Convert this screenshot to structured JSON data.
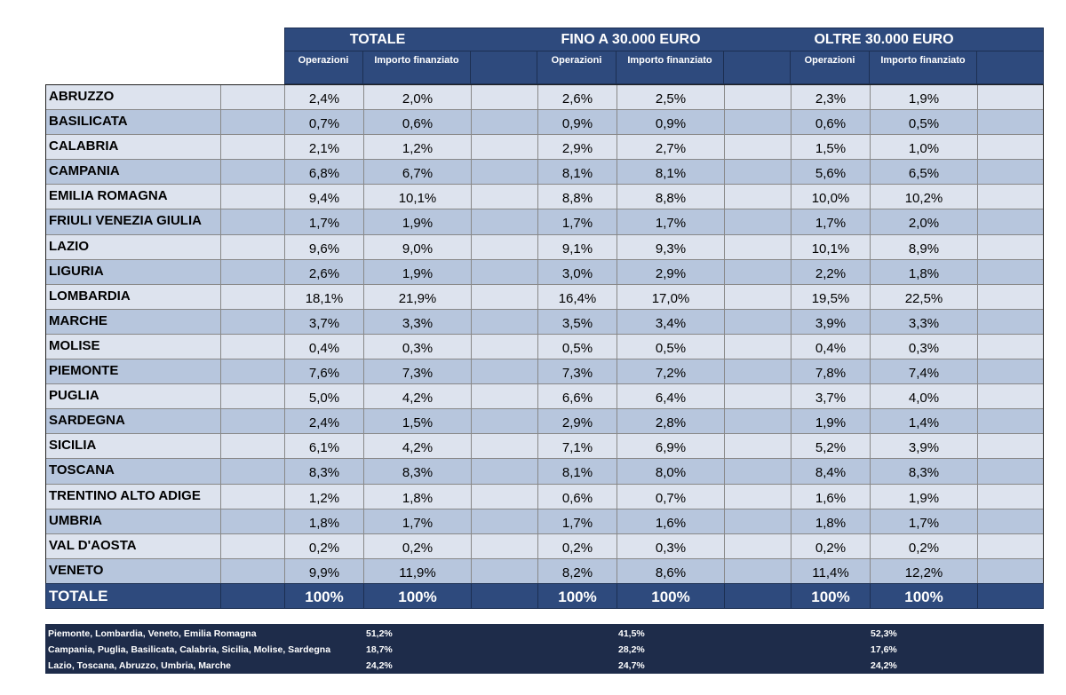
{
  "header": {
    "groups": [
      "TOTALE",
      "FINO A 30.000 EURO",
      "OLTRE 30.000 EURO"
    ],
    "sub_ops": "Operazioni",
    "sub_imp": "Importo finanziato"
  },
  "rows": [
    {
      "name": "ABRUZZO",
      "v": [
        "2,4%",
        "2,0%",
        "2,6%",
        "2,5%",
        "2,3%",
        "1,9%"
      ]
    },
    {
      "name": "BASILICATA",
      "v": [
        "0,7%",
        "0,6%",
        "0,9%",
        "0,9%",
        "0,6%",
        "0,5%"
      ]
    },
    {
      "name": "CALABRIA",
      "v": [
        "2,1%",
        "1,2%",
        "2,9%",
        "2,7%",
        "1,5%",
        "1,0%"
      ]
    },
    {
      "name": "CAMPANIA",
      "v": [
        "6,8%",
        "6,7%",
        "8,1%",
        "8,1%",
        "5,6%",
        "6,5%"
      ]
    },
    {
      "name": "EMILIA ROMAGNA",
      "v": [
        "9,4%",
        "10,1%",
        "8,8%",
        "8,8%",
        "10,0%",
        "10,2%"
      ]
    },
    {
      "name": "FRIULI VENEZIA GIULIA",
      "v": [
        "1,7%",
        "1,9%",
        "1,7%",
        "1,7%",
        "1,7%",
        "2,0%"
      ]
    },
    {
      "name": "LAZIO",
      "v": [
        "9,6%",
        "9,0%",
        "9,1%",
        "9,3%",
        "10,1%",
        "8,9%"
      ]
    },
    {
      "name": "LIGURIA",
      "v": [
        "2,6%",
        "1,9%",
        "3,0%",
        "2,9%",
        "2,2%",
        "1,8%"
      ]
    },
    {
      "name": "LOMBARDIA",
      "v": [
        "18,1%",
        "21,9%",
        "16,4%",
        "17,0%",
        "19,5%",
        "22,5%"
      ]
    },
    {
      "name": "MARCHE",
      "v": [
        "3,7%",
        "3,3%",
        "3,5%",
        "3,4%",
        "3,9%",
        "3,3%"
      ]
    },
    {
      "name": "MOLISE",
      "v": [
        "0,4%",
        "0,3%",
        "0,5%",
        "0,5%",
        "0,4%",
        "0,3%"
      ]
    },
    {
      "name": "PIEMONTE",
      "v": [
        "7,6%",
        "7,3%",
        "7,3%",
        "7,2%",
        "7,8%",
        "7,4%"
      ]
    },
    {
      "name": "PUGLIA",
      "v": [
        "5,0%",
        "4,2%",
        "6,6%",
        "6,4%",
        "3,7%",
        "4,0%"
      ]
    },
    {
      "name": "SARDEGNA",
      "v": [
        "2,4%",
        "1,5%",
        "2,9%",
        "2,8%",
        "1,9%",
        "1,4%"
      ]
    },
    {
      "name": "SICILIA",
      "v": [
        "6,1%",
        "4,2%",
        "7,1%",
        "6,9%",
        "5,2%",
        "3,9%"
      ]
    },
    {
      "name": "TOSCANA",
      "v": [
        "8,3%",
        "8,3%",
        "8,1%",
        "8,0%",
        "8,4%",
        "8,3%"
      ]
    },
    {
      "name": "TRENTINO ALTO ADIGE",
      "v": [
        "1,2%",
        "1,8%",
        "0,6%",
        "0,7%",
        "1,6%",
        "1,9%"
      ]
    },
    {
      "name": "UMBRIA",
      "v": [
        "1,8%",
        "1,7%",
        "1,7%",
        "1,6%",
        "1,8%",
        "1,7%"
      ]
    },
    {
      "name": "VAL D'AOSTA",
      "v": [
        "0,2%",
        "0,2%",
        "0,2%",
        "0,3%",
        "0,2%",
        "0,2%"
      ]
    },
    {
      "name": "VENETO",
      "v": [
        "9,9%",
        "11,9%",
        "8,2%",
        "8,6%",
        "11,4%",
        "12,2%"
      ]
    }
  ],
  "total": {
    "name": "TOTALE",
    "v": [
      "100%",
      "100%",
      "100%",
      "100%",
      "100%",
      "100%"
    ]
  },
  "summary": [
    {
      "label": "Piemonte, Lombardia, Veneto, Emilia Romagna",
      "v": [
        "51,2%",
        "41,5%",
        "52,3%"
      ]
    },
    {
      "label": "Campania, Puglia, Basilicata, Calabria, Sicilia, Molise, Sardegna",
      "v": [
        "18,7%",
        "28,2%",
        "17,6%"
      ]
    },
    {
      "label": "Lazio, Toscana, Abruzzo, Umbria, Marche",
      "v": [
        "24,2%",
        "24,7%",
        "24,2%"
      ]
    }
  ]
}
